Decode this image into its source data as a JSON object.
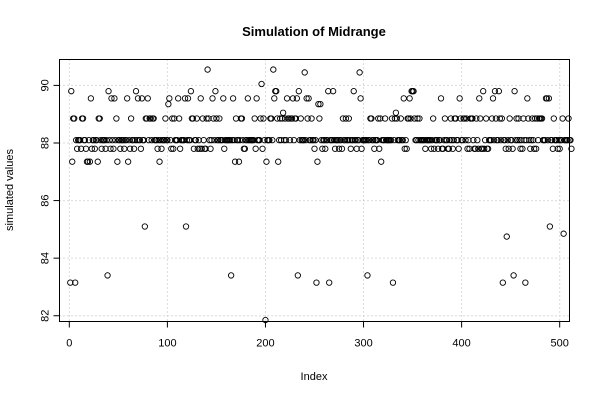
{
  "chart_data": {
    "type": "scatter",
    "title": "Simulation of Midrange",
    "xlabel": "Index",
    "ylabel": "simulated values",
    "xlim": [
      -10,
      510
    ],
    "ylim": [
      81.8,
      90.9
    ],
    "x_ticks": [
      0,
      100,
      200,
      300,
      400,
      500
    ],
    "y_ticks": [
      82,
      84,
      86,
      88,
      90
    ],
    "grid": true,
    "series": [
      {
        "values": [
          83.15,
          89.8,
          87.35,
          88.85,
          88.85,
          83.15,
          88.1,
          87.8,
          88.1,
          88.1,
          88.1,
          87.8,
          88.85,
          88.85,
          88.1,
          88.1,
          87.8,
          87.35,
          87.35,
          88.1,
          87.35,
          89.55,
          87.8,
          88.1,
          88.1,
          87.8,
          88.1,
          88.1,
          87.35,
          88.85,
          88.85,
          88.1,
          87.8,
          88.1,
          88.1,
          88.1,
          87.8,
          88.1,
          83.4,
          89.8,
          88.1,
          87.8,
          89.55,
          88.1,
          87.8,
          89.55,
          88.1,
          88.85,
          87.35,
          88.1,
          88.1,
          87.8,
          88.1,
          88.1,
          88.1,
          87.8,
          88.1,
          88.1,
          89.55,
          87.35,
          88.1,
          87.8,
          88.85,
          88.1,
          88.1,
          87.8,
          88.1,
          89.8,
          88.1,
          89.55,
          88.1,
          88.1,
          87.8,
          89.55,
          88.1,
          88.1,
          85.1,
          88.85,
          88.85,
          89.55,
          88.1,
          88.85,
          88.85,
          88.1,
          88.85,
          88.85,
          88.1,
          88.1,
          88.1,
          87.8,
          88.1,
          87.35,
          88.1,
          87.8,
          88.1,
          88.1,
          88.1,
          88.85,
          88.1,
          88.1,
          89.35,
          89.55,
          88.1,
          87.8,
          88.85,
          87.8,
          88.85,
          88.1,
          88.1,
          88.1,
          89.55,
          88.85,
          87.8,
          88.1,
          88.1,
          88.1,
          88.1,
          89.55,
          85.1,
          88.1,
          89.55,
          88.1,
          88.1,
          89.8,
          88.85,
          88.85,
          87.8,
          88.1,
          88.1,
          88.85,
          87.8,
          88.1,
          87.8,
          89.55,
          87.8,
          88.85,
          88.1,
          87.8,
          87.8,
          88.85,
          90.55,
          88.85,
          88.1,
          87.8,
          88.1,
          89.55,
          88.85,
          88.1,
          89.8,
          88.85,
          88.1,
          88.1,
          88.85,
          88.1,
          88.1,
          88.1,
          89.55,
          87.8,
          88.1,
          88.1,
          88.1,
          88.1,
          88.1,
          88.1,
          83.4,
          88.1,
          89.55,
          88.1,
          87.35,
          88.85,
          88.1,
          88.1,
          87.35,
          88.1,
          88.85,
          88.85,
          88.1,
          87.8,
          87.8,
          88.1,
          88.1,
          89.55,
          88.1,
          88.1,
          88.1,
          88.1,
          88.1,
          88.1,
          88.85,
          87.8,
          89.55,
          88.1,
          88.1,
          88.1,
          88.85,
          90.05,
          87.8,
          88.85,
          88.1,
          81.85,
          87.35,
          88.1,
          88.1,
          88.1,
          88.85,
          88.85,
          88.1,
          90.55,
          89.55,
          89.8,
          89.8,
          88.85,
          87.35,
          88.1,
          88.85,
          88.1,
          88.85,
          89.05,
          88.1,
          88.85,
          88.1,
          89.55,
          88.85,
          88.85,
          88.1,
          88.85,
          88.85,
          89.55,
          88.1,
          88.85,
          88.85,
          89.55,
          83.4,
          89.8,
          88.1,
          88.85,
          88.1,
          88.1,
          88.1,
          90.45,
          88.1,
          89.55,
          88.85,
          89.55,
          88.1,
          88.1,
          88.85,
          88.1,
          88.1,
          87.8,
          88.1,
          83.15,
          87.35,
          89.35,
          88.85,
          89.35,
          88.1,
          87.8,
          88.1,
          88.1,
          87.8,
          88.1,
          88.1,
          89.8,
          83.15,
          88.1,
          88.1,
          88.1,
          89.8,
          88.1,
          87.8,
          88.1,
          88.1,
          88.1,
          87.8,
          88.1,
          88.1,
          87.8,
          88.85,
          88.1,
          88.1,
          88.85,
          88.1,
          88.1,
          88.85,
          88.1,
          87.8,
          88.1,
          88.1,
          89.8,
          88.1,
          88.1,
          87.8,
          88.1,
          88.1,
          90.45,
          89.55,
          87.8,
          88.1,
          88.1,
          88.1,
          88.1,
          88.1,
          83.4,
          88.1,
          88.1,
          88.85,
          88.85,
          88.1,
          88.1,
          87.8,
          88.1,
          88.1,
          88.1,
          88.85,
          87.8,
          88.85,
          87.35,
          88.1,
          88.1,
          88.1,
          88.85,
          88.1,
          88.1,
          88.1,
          88.1,
          88.1,
          88.1,
          88.85,
          83.15,
          88.1,
          88.85,
          89.05,
          88.85,
          88.1,
          88.1,
          88.1,
          88.85,
          88.1,
          88.1,
          89.55,
          87.8,
          88.1,
          87.8,
          88.85,
          88.85,
          89.55,
          88.85,
          89.8,
          89.8,
          89.8,
          88.85,
          88.1,
          88.1,
          88.85,
          88.1,
          88.85,
          88.1,
          88.1,
          88.1,
          88.1,
          88.1,
          87.8,
          88.1,
          88.1,
          88.1,
          88.1,
          88.1,
          87.8,
          88.1,
          88.85,
          87.8,
          88.1,
          88.1,
          88.1,
          87.8,
          88.1,
          88.1,
          89.55,
          87.8,
          87.8,
          88.1,
          88.85,
          88.1,
          88.1,
          87.8,
          87.8,
          88.1,
          88.85,
          88.1,
          87.8,
          88.1,
          88.85,
          88.85,
          88.1,
          88.1,
          87.8,
          89.55,
          88.85,
          88.1,
          88.1,
          88.85,
          88.85,
          88.1,
          88.85,
          87.8,
          88.1,
          87.8,
          88.85,
          88.85,
          88.85,
          88.1,
          87.8,
          87.8,
          88.85,
          88.1,
          87.8,
          89.55,
          88.85,
          87.8,
          87.8,
          89.8,
          87.8,
          88.1,
          88.85,
          87.8,
          87.8,
          88.1,
          88.1,
          88.1,
          88.85,
          89.55,
          88.1,
          89.8,
          88.85,
          88.1,
          88.1,
          89.8,
          88.85,
          88.1,
          88.85,
          83.15,
          88.1,
          88.1,
          87.8,
          84.75,
          88.1,
          87.8,
          88.85,
          88.1,
          88.1,
          87.8,
          83.4,
          89.8,
          88.1,
          88.85,
          88.1,
          88.85,
          88.1,
          87.8,
          88.1,
          87.8,
          88.85,
          88.1,
          83.15,
          88.1,
          89.55,
          88.85,
          88.1,
          87.8,
          88.1,
          88.85,
          88.1,
          87.8,
          88.85,
          87.8,
          88.85,
          88.1,
          88.85,
          88.85,
          88.85,
          88.85,
          88.1,
          88.1,
          88.1,
          89.55,
          89.55,
          88.1,
          89.55,
          85.1,
          88.1,
          88.1,
          87.8,
          88.85,
          88.1,
          88.1,
          88.1,
          87.8,
          88.1,
          87.8,
          88.1,
          88.1,
          88.85,
          84.85,
          88.1,
          88.1,
          88.1,
          88.1,
          88.85,
          88.1,
          88.1,
          87.8
        ]
      }
    ]
  }
}
